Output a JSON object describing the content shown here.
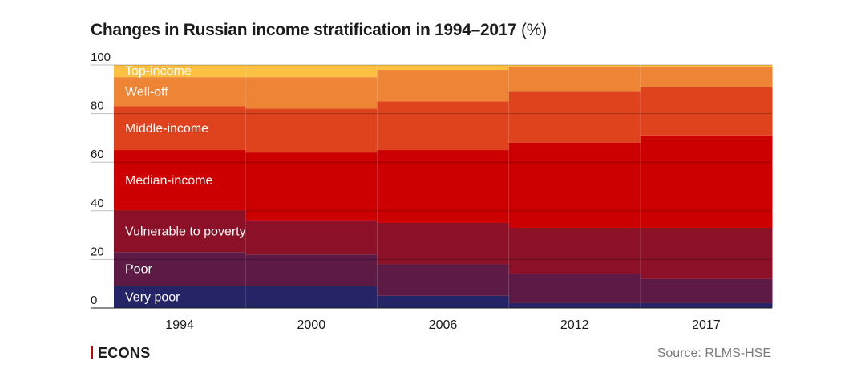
{
  "title": "Changes in Russian income stratification in 1994–2017",
  "title_unit": "(%)",
  "brand": "ECONS",
  "source": "Source: RLMS-HSE",
  "chart_data": {
    "type": "bar",
    "stacked": true,
    "categories": [
      "1994",
      "2000",
      "2006",
      "2012",
      "2017"
    ],
    "ylim": [
      0,
      100
    ],
    "yticks": [
      "0",
      "20",
      "40",
      "60",
      "80",
      "100"
    ],
    "grid": true,
    "series": [
      {
        "name": "Very poor",
        "color": "#242466",
        "values": [
          9,
          9,
          5,
          2,
          2
        ]
      },
      {
        "name": "Poor",
        "color": "#5c1a44",
        "values": [
          14,
          13,
          13,
          12,
          10
        ]
      },
      {
        "name": "Vulnerable to poverty",
        "color": "#8c1028",
        "values": [
          17,
          14,
          17,
          19,
          21
        ]
      },
      {
        "name": "Median-income",
        "color": "#cc0000",
        "values": [
          25,
          28,
          30,
          35,
          38
        ]
      },
      {
        "name": "Middle-income",
        "color": "#de431d",
        "values": [
          18,
          18,
          20,
          21,
          20
        ]
      },
      {
        "name": "Well-off",
        "color": "#ee8435",
        "values": [
          12,
          13,
          13,
          10,
          8
        ]
      },
      {
        "name": "Top-income",
        "color": "#fcc043",
        "values": [
          5,
          5,
          2,
          1,
          1
        ]
      }
    ]
  }
}
